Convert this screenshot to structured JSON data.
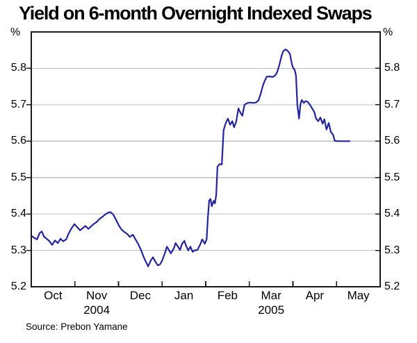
{
  "title": "Yield on 6-month Overnight Indexed Swaps",
  "source": "Source: Prebon Yamane",
  "axis": {
    "unit_left": "%",
    "unit_right": "%",
    "y_tick_labels": [
      "5.8",
      "5.7",
      "5.6",
      "5.5",
      "5.4",
      "5.3",
      "5.2"
    ],
    "y_tick_values": [
      5.8,
      5.7,
      5.6,
      5.5,
      5.4,
      5.3,
      5.2
    ],
    "months": [
      "Oct",
      "Nov",
      "Dec",
      "Jan",
      "Feb",
      "Mar",
      "Apr",
      "May"
    ],
    "years": [
      {
        "label": "2004",
        "month_index": 1
      },
      {
        "label": "2005",
        "month_index": 5
      }
    ]
  },
  "colors": {
    "line": "#2323a0",
    "grid": "#b9c0c8",
    "frame": "#1a1a1a",
    "text": "#000000"
  },
  "chart_data": {
    "type": "line",
    "title": "Yield on 6-month Overnight Indexed Swaps",
    "ylabel": "%",
    "ylim": [
      5.2,
      5.9
    ],
    "x_range": [
      0,
      8
    ],
    "x_unit": "months, 0 = start of Oct 2004, 8 = end of May 2005",
    "x_labels": [
      "Oct",
      "Nov",
      "Dec",
      "Jan",
      "Feb",
      "Mar",
      "Apr",
      "May"
    ],
    "gridlines": [
      5.3,
      5.4,
      5.5,
      5.6,
      5.7,
      5.8
    ],
    "grid": true,
    "legend": "none",
    "series": [
      {
        "name": "6-month OIS yield",
        "points": [
          [
            0.0,
            5.34
          ],
          [
            0.06,
            5.335
          ],
          [
            0.13,
            5.33
          ],
          [
            0.19,
            5.347
          ],
          [
            0.24,
            5.352
          ],
          [
            0.29,
            5.338
          ],
          [
            0.35,
            5.332
          ],
          [
            0.41,
            5.326
          ],
          [
            0.48,
            5.315
          ],
          [
            0.54,
            5.327
          ],
          [
            0.61,
            5.32
          ],
          [
            0.67,
            5.332
          ],
          [
            0.73,
            5.325
          ],
          [
            0.8,
            5.33
          ],
          [
            0.86,
            5.347
          ],
          [
            0.92,
            5.36
          ],
          [
            0.99,
            5.372
          ],
          [
            1.05,
            5.364
          ],
          [
            1.12,
            5.355
          ],
          [
            1.18,
            5.361
          ],
          [
            1.24,
            5.367
          ],
          [
            1.31,
            5.359
          ],
          [
            1.37,
            5.366
          ],
          [
            1.43,
            5.372
          ],
          [
            1.5,
            5.378
          ],
          [
            1.56,
            5.386
          ],
          [
            1.63,
            5.392
          ],
          [
            1.69,
            5.398
          ],
          [
            1.75,
            5.403
          ],
          [
            1.82,
            5.405
          ],
          [
            1.88,
            5.398
          ],
          [
            1.94,
            5.385
          ],
          [
            2.01,
            5.368
          ],
          [
            2.07,
            5.357
          ],
          [
            2.14,
            5.35
          ],
          [
            2.2,
            5.345
          ],
          [
            2.26,
            5.337
          ],
          [
            2.33,
            5.343
          ],
          [
            2.39,
            5.33
          ],
          [
            2.45,
            5.318
          ],
          [
            2.52,
            5.3
          ],
          [
            2.58,
            5.281
          ],
          [
            2.63,
            5.268
          ],
          [
            2.68,
            5.256
          ],
          [
            2.74,
            5.272
          ],
          [
            2.79,
            5.281
          ],
          [
            2.84,
            5.27
          ],
          [
            2.9,
            5.259
          ],
          [
            2.95,
            5.261
          ],
          [
            3.0,
            5.272
          ],
          [
            3.06,
            5.291
          ],
          [
            3.11,
            5.31
          ],
          [
            3.16,
            5.3
          ],
          [
            3.2,
            5.292
          ],
          [
            3.27,
            5.306
          ],
          [
            3.31,
            5.32
          ],
          [
            3.36,
            5.311
          ],
          [
            3.41,
            5.301
          ],
          [
            3.46,
            5.318
          ],
          [
            3.51,
            5.326
          ],
          [
            3.55,
            5.312
          ],
          [
            3.6,
            5.3
          ],
          [
            3.65,
            5.31
          ],
          [
            3.7,
            5.296
          ],
          [
            3.74,
            5.3
          ],
          [
            3.81,
            5.301
          ],
          [
            3.87,
            5.315
          ],
          [
            3.92,
            5.33
          ],
          [
            3.95,
            5.324
          ],
          [
            3.98,
            5.318
          ],
          [
            4.02,
            5.33
          ],
          [
            4.05,
            5.39
          ],
          [
            4.08,
            5.437
          ],
          [
            4.11,
            5.441
          ],
          [
            4.14,
            5.421
          ],
          [
            4.18,
            5.436
          ],
          [
            4.21,
            5.429
          ],
          [
            4.24,
            5.452
          ],
          [
            4.27,
            5.53
          ],
          [
            4.32,
            5.537
          ],
          [
            4.37,
            5.536
          ],
          [
            4.41,
            5.63
          ],
          [
            4.46,
            5.65
          ],
          [
            4.51,
            5.662
          ],
          [
            4.56,
            5.645
          ],
          [
            4.61,
            5.655
          ],
          [
            4.65,
            5.638
          ],
          [
            4.7,
            5.654
          ],
          [
            4.75,
            5.69
          ],
          [
            4.8,
            5.677
          ],
          [
            4.84,
            5.67
          ],
          [
            4.89,
            5.7
          ],
          [
            4.96,
            5.705
          ],
          [
            5.02,
            5.706
          ],
          [
            5.08,
            5.705
          ],
          [
            5.15,
            5.706
          ],
          [
            5.21,
            5.712
          ],
          [
            5.26,
            5.73
          ],
          [
            5.31,
            5.752
          ],
          [
            5.35,
            5.765
          ],
          [
            5.4,
            5.777
          ],
          [
            5.47,
            5.778
          ],
          [
            5.53,
            5.776
          ],
          [
            5.59,
            5.78
          ],
          [
            5.64,
            5.79
          ],
          [
            5.69,
            5.81
          ],
          [
            5.74,
            5.835
          ],
          [
            5.78,
            5.848
          ],
          [
            5.83,
            5.852
          ],
          [
            5.88,
            5.848
          ],
          [
            5.93,
            5.84
          ],
          [
            5.98,
            5.81
          ],
          [
            6.01,
            5.8
          ],
          [
            6.04,
            5.796
          ],
          [
            6.07,
            5.78
          ],
          [
            6.1,
            5.7
          ],
          [
            6.14,
            5.662
          ],
          [
            6.17,
            5.7
          ],
          [
            6.2,
            5.713
          ],
          [
            6.25,
            5.705
          ],
          [
            6.29,
            5.71
          ],
          [
            6.34,
            5.708
          ],
          [
            6.39,
            5.7
          ],
          [
            6.44,
            5.69
          ],
          [
            6.49,
            5.68
          ],
          [
            6.53,
            5.662
          ],
          [
            6.58,
            5.655
          ],
          [
            6.63,
            5.665
          ],
          [
            6.68,
            5.648
          ],
          [
            6.72,
            5.66
          ],
          [
            6.77,
            5.632
          ],
          [
            6.82,
            5.65
          ],
          [
            6.87,
            5.625
          ],
          [
            6.92,
            5.618
          ],
          [
            6.96,
            5.601
          ],
          [
            7.03,
            5.6
          ],
          [
            7.3,
            5.6
          ]
        ]
      }
    ]
  }
}
